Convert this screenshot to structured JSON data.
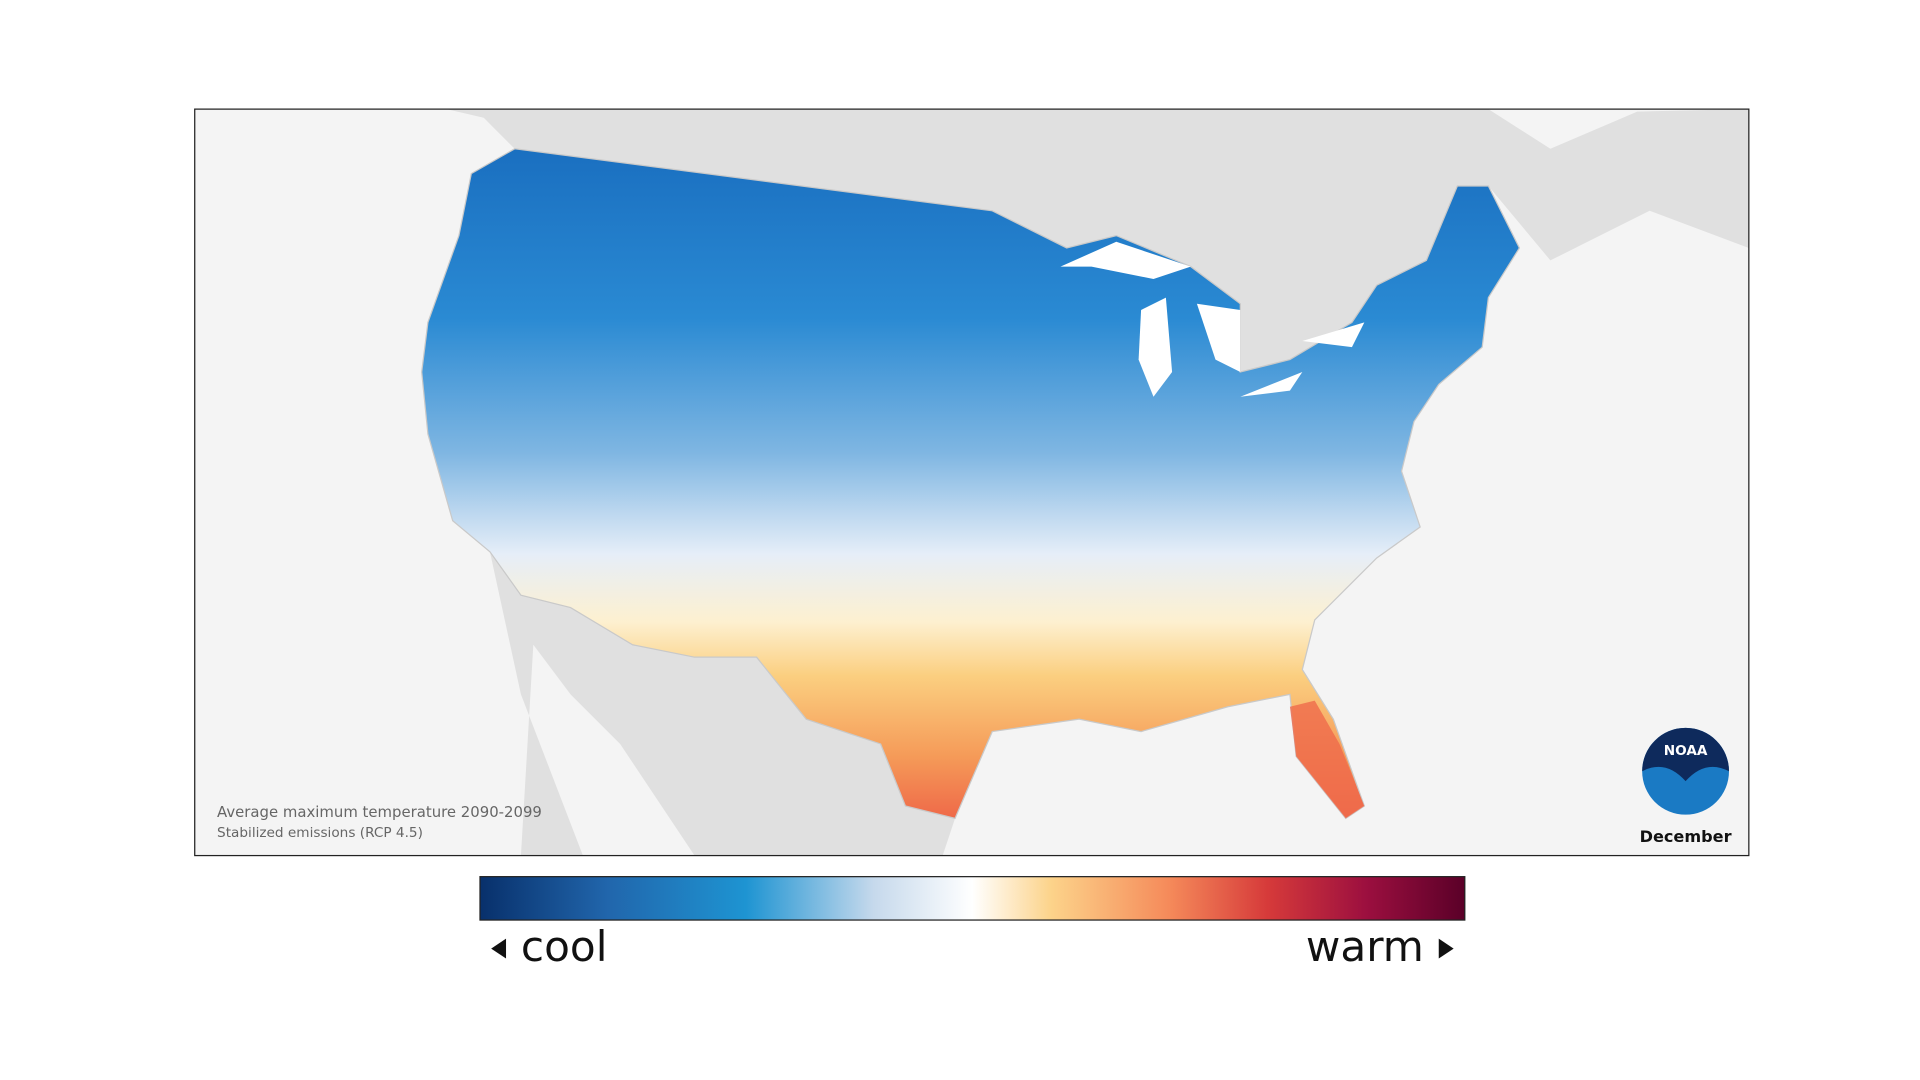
{
  "map": {
    "caption": [
      "Average maximum temperature 2090-2099",
      "Stabilized emissions (RCP 4.5)"
    ],
    "month": "December",
    "logo": "NOAA"
  },
  "legend": {
    "low": "cool",
    "high": "warm"
  }
}
